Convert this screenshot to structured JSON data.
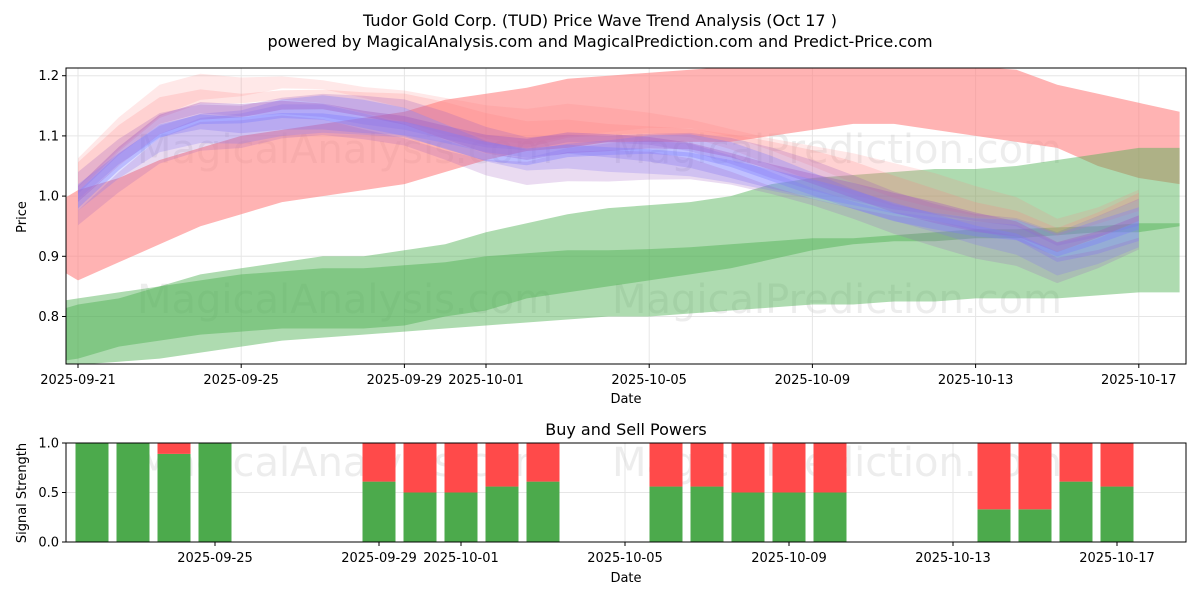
{
  "figure": {
    "title_line1": "Tudor Gold Corp. (TUD) Price Wave Trend Analysis (Oct 17 )",
    "title_line2": "powered by MagicalAnalysis.com and MagicalPrediction.com and Predict-Price.com",
    "watermarks": [
      "MagicalAnalysis.com",
      "MagicalPrediction.com"
    ]
  },
  "colors": {
    "red_band": "#ff8080",
    "green_band": "#4caf50",
    "blue_band": "#7a7aff",
    "purple_band": "#a05abf",
    "buy_bar": "#4caa4c",
    "sell_bar": "#ff4a4a"
  },
  "chart_data": [
    {
      "type": "area",
      "title": "",
      "xlabel": "Date",
      "ylabel": "Price",
      "xlim": [
        "2025-09-20",
        "2025-10-18"
      ],
      "ylim": [
        0.72,
        1.215
      ],
      "x_ticks": [
        "2025-09-21",
        "2025-09-25",
        "2025-09-29",
        "2025-10-01",
        "2025-10-05",
        "2025-10-09",
        "2025-10-13",
        "2025-10-17"
      ],
      "y_ticks": [
        0.8,
        0.9,
        1.0,
        1.1,
        1.2
      ],
      "grid": true,
      "series": [
        {
          "name": "Upper red wave",
          "color": "red",
          "x": [
            "2025-09-20",
            "2025-09-21",
            "2025-09-22",
            "2025-09-23",
            "2025-09-24",
            "2025-09-25",
            "2025-09-26",
            "2025-09-27",
            "2025-09-28",
            "2025-09-29",
            "2025-09-30",
            "2025-10-01",
            "2025-10-02",
            "2025-10-03",
            "2025-10-04",
            "2025-10-05",
            "2025-10-06",
            "2025-10-07",
            "2025-10-08",
            "2025-10-09",
            "2025-10-10",
            "2025-10-11",
            "2025-10-12",
            "2025-10-13",
            "2025-10-14",
            "2025-10-15",
            "2025-10-16",
            "2025-10-17",
            "2025-10-18"
          ],
          "upper": [
            0.97,
            1.01,
            1.03,
            1.06,
            1.08,
            1.1,
            1.11,
            1.12,
            1.13,
            1.14,
            1.16,
            1.17,
            1.18,
            1.195,
            1.2,
            1.205,
            1.21,
            1.215,
            1.215,
            1.215,
            1.215,
            1.215,
            1.215,
            1.215,
            1.21,
            1.185,
            1.17,
            1.155,
            1.14
          ],
          "lower": [
            0.9,
            0.86,
            0.89,
            0.92,
            0.95,
            0.97,
            0.99,
            1.0,
            1.01,
            1.02,
            1.04,
            1.06,
            1.075,
            1.08,
            1.09,
            1.09,
            1.09,
            1.09,
            1.1,
            1.11,
            1.12,
            1.12,
            1.11,
            1.1,
            1.09,
            1.08,
            1.05,
            1.03,
            1.02
          ]
        },
        {
          "name": "Middle green wave",
          "color": "green",
          "x": [
            "2025-09-20",
            "2025-09-21",
            "2025-09-22",
            "2025-09-23",
            "2025-09-24",
            "2025-09-25",
            "2025-09-26",
            "2025-09-27",
            "2025-09-28",
            "2025-09-29",
            "2025-09-30",
            "2025-10-01",
            "2025-10-02",
            "2025-10-03",
            "2025-10-04",
            "2025-10-05",
            "2025-10-06",
            "2025-10-07",
            "2025-10-08",
            "2025-10-09",
            "2025-10-10",
            "2025-10-11",
            "2025-10-12",
            "2025-10-13",
            "2025-10-14",
            "2025-10-15",
            "2025-10-16",
            "2025-10-17",
            "2025-10-18"
          ],
          "upper": [
            0.8,
            0.82,
            0.83,
            0.85,
            0.87,
            0.88,
            0.89,
            0.9,
            0.9,
            0.91,
            0.92,
            0.94,
            0.955,
            0.97,
            0.98,
            0.985,
            0.99,
            1.0,
            1.02,
            1.03,
            1.035,
            1.04,
            1.045,
            1.045,
            1.05,
            1.06,
            1.07,
            1.08,
            1.08
          ],
          "lower": [
            0.72,
            0.73,
            0.75,
            0.76,
            0.77,
            0.775,
            0.78,
            0.78,
            0.78,
            0.785,
            0.8,
            0.81,
            0.83,
            0.84,
            0.85,
            0.86,
            0.87,
            0.88,
            0.895,
            0.91,
            0.92,
            0.925,
            0.925,
            0.93,
            0.93,
            0.935,
            0.94,
            0.94,
            0.95
          ]
        },
        {
          "name": "Lower green wave",
          "color": "green",
          "x": [
            "2025-09-20",
            "2025-09-21",
            "2025-09-22",
            "2025-09-23",
            "2025-09-24",
            "2025-09-25",
            "2025-09-26",
            "2025-09-27",
            "2025-09-28",
            "2025-09-29",
            "2025-09-30",
            "2025-10-01",
            "2025-10-02",
            "2025-10-03",
            "2025-10-04",
            "2025-10-05",
            "2025-10-06",
            "2025-10-07",
            "2025-10-08",
            "2025-10-09",
            "2025-10-10",
            "2025-10-11",
            "2025-10-12",
            "2025-10-13",
            "2025-10-14",
            "2025-10-15",
            "2025-10-16",
            "2025-10-17",
            "2025-10-18"
          ],
          "upper": [
            0.82,
            0.83,
            0.84,
            0.85,
            0.86,
            0.87,
            0.875,
            0.88,
            0.88,
            0.885,
            0.89,
            0.9,
            0.905,
            0.91,
            0.91,
            0.912,
            0.915,
            0.92,
            0.925,
            0.93,
            0.93,
            0.935,
            0.94,
            0.945,
            0.945,
            0.948,
            0.95,
            0.955,
            0.955
          ],
          "lower": [
            0.72,
            0.72,
            0.725,
            0.73,
            0.74,
            0.75,
            0.76,
            0.765,
            0.77,
            0.775,
            0.78,
            0.785,
            0.79,
            0.795,
            0.8,
            0.8,
            0.805,
            0.81,
            0.815,
            0.82,
            0.82,
            0.825,
            0.825,
            0.83,
            0.83,
            0.83,
            0.835,
            0.84,
            0.84
          ]
        },
        {
          "name": "Prediction wave cluster (consensus)",
          "color": "blue",
          "x": [
            "2025-09-21",
            "2025-09-22",
            "2025-09-23",
            "2025-09-24",
            "2025-09-25",
            "2025-09-26",
            "2025-09-27",
            "2025-09-28",
            "2025-09-29",
            "2025-09-30",
            "2025-10-01",
            "2025-10-02",
            "2025-10-03",
            "2025-10-04",
            "2025-10-05",
            "2025-10-06",
            "2025-10-07",
            "2025-10-08",
            "2025-10-09",
            "2025-10-10",
            "2025-10-11",
            "2025-10-12",
            "2025-10-13",
            "2025-10-14",
            "2025-10-15",
            "2025-10-16",
            "2025-10-17"
          ],
          "center": [
            1.0,
            1.06,
            1.11,
            1.13,
            1.13,
            1.14,
            1.14,
            1.13,
            1.12,
            1.1,
            1.08,
            1.07,
            1.08,
            1.08,
            1.08,
            1.075,
            1.06,
            1.04,
            1.02,
            1.0,
            0.98,
            0.965,
            0.95,
            0.94,
            0.91,
            0.93,
            0.955
          ]
        }
      ]
    },
    {
      "type": "bar",
      "title": "Buy and Sell Powers",
      "xlabel": "Date",
      "ylabel": "Signal Strength",
      "xlim": [
        "2025-09-20",
        "2025-10-18"
      ],
      "ylim": [
        0.0,
        1.0
      ],
      "x_ticks": [
        "2025-09-25",
        "2025-09-29",
        "2025-10-01",
        "2025-10-05",
        "2025-10-09",
        "2025-10-13",
        "2025-10-17"
      ],
      "y_ticks": [
        0.0,
        0.5,
        1.0
      ],
      "categories": [
        "2025-09-22",
        "2025-09-23",
        "2025-09-24",
        "2025-09-25",
        "2025-09-29",
        "2025-09-30",
        "2025-10-01",
        "2025-10-02",
        "2025-10-03",
        "2025-10-06",
        "2025-10-07",
        "2025-10-08",
        "2025-10-09",
        "2025-10-10",
        "2025-10-14",
        "2025-10-15",
        "2025-10-16",
        "2025-10-17"
      ],
      "series": [
        {
          "name": "Buy",
          "color": "green",
          "values": [
            1.0,
            1.0,
            0.89,
            1.0,
            0.61,
            0.5,
            0.5,
            0.56,
            0.61,
            0.56,
            0.56,
            0.5,
            0.5,
            0.5,
            0.33,
            0.33,
            0.61,
            0.56
          ]
        },
        {
          "name": "Sell",
          "color": "red",
          "values": [
            0.0,
            0.0,
            0.11,
            0.0,
            0.39,
            0.5,
            0.5,
            0.44,
            0.39,
            0.44,
            0.44,
            0.5,
            0.5,
            0.5,
            0.67,
            0.67,
            0.39,
            0.44
          ]
        }
      ]
    }
  ]
}
